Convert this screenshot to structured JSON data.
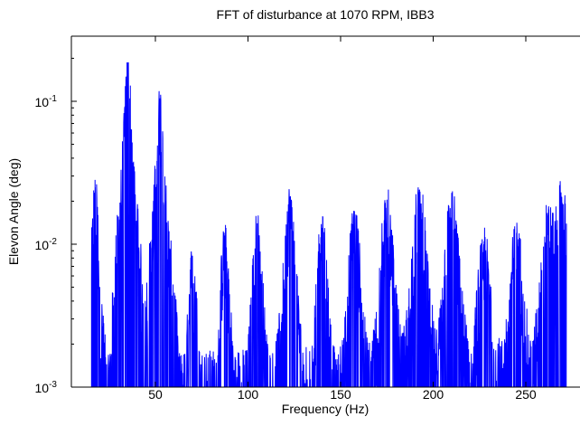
{
  "chart_data": {
    "type": "line",
    "title": "FFT of disturbance at 1070 RPM, IBB3",
    "xlabel": "Frequency (Hz)",
    "ylabel": "Elevon Angle (deg)",
    "xlim": [
      7,
      272
    ],
    "ylim": [
      0.001,
      0.3
    ],
    "y_scale": "log",
    "grid": false,
    "x_ticks": [
      {
        "value": 50,
        "label": "50"
      },
      {
        "value": 100,
        "label": "100"
      },
      {
        "value": 150,
        "label": "150"
      },
      {
        "value": 200,
        "label": "200"
      },
      {
        "value": 250,
        "label": "250"
      }
    ],
    "y_ticks": [
      {
        "value": 0.001,
        "base": "10",
        "exp": "-3"
      },
      {
        "value": 0.01,
        "base": "10",
        "exp": "-2"
      },
      {
        "value": 0.1,
        "base": "10",
        "exp": "-1"
      }
    ],
    "line_color": "#0000ff",
    "series": [
      {
        "peaks": [
          {
            "f": 17.5,
            "amp": 0.025
          },
          {
            "f": 35.0,
            "amp": 0.18
          },
          {
            "f": 52.5,
            "amp": 0.105
          },
          {
            "f": 70.0,
            "amp": 0.0083
          },
          {
            "f": 87.5,
            "amp": 0.0115
          },
          {
            "f": 105.0,
            "amp": 0.014
          },
          {
            "f": 122.5,
            "amp": 0.0215
          },
          {
            "f": 140.0,
            "amp": 0.013
          },
          {
            "f": 157.5,
            "amp": 0.016
          },
          {
            "f": 175.0,
            "amp": 0.0205
          },
          {
            "f": 192.5,
            "amp": 0.024
          },
          {
            "f": 210.0,
            "amp": 0.0205
          },
          {
            "f": 227.5,
            "amp": 0.0105
          },
          {
            "f": 245.0,
            "amp": 0.012
          },
          {
            "f": 262.5,
            "amp": 0.0175
          },
          {
            "f": 269.0,
            "amp": 0.023
          }
        ],
        "floor": 0.0018,
        "f_start": 15.5,
        "f_end": 272
      }
    ]
  }
}
